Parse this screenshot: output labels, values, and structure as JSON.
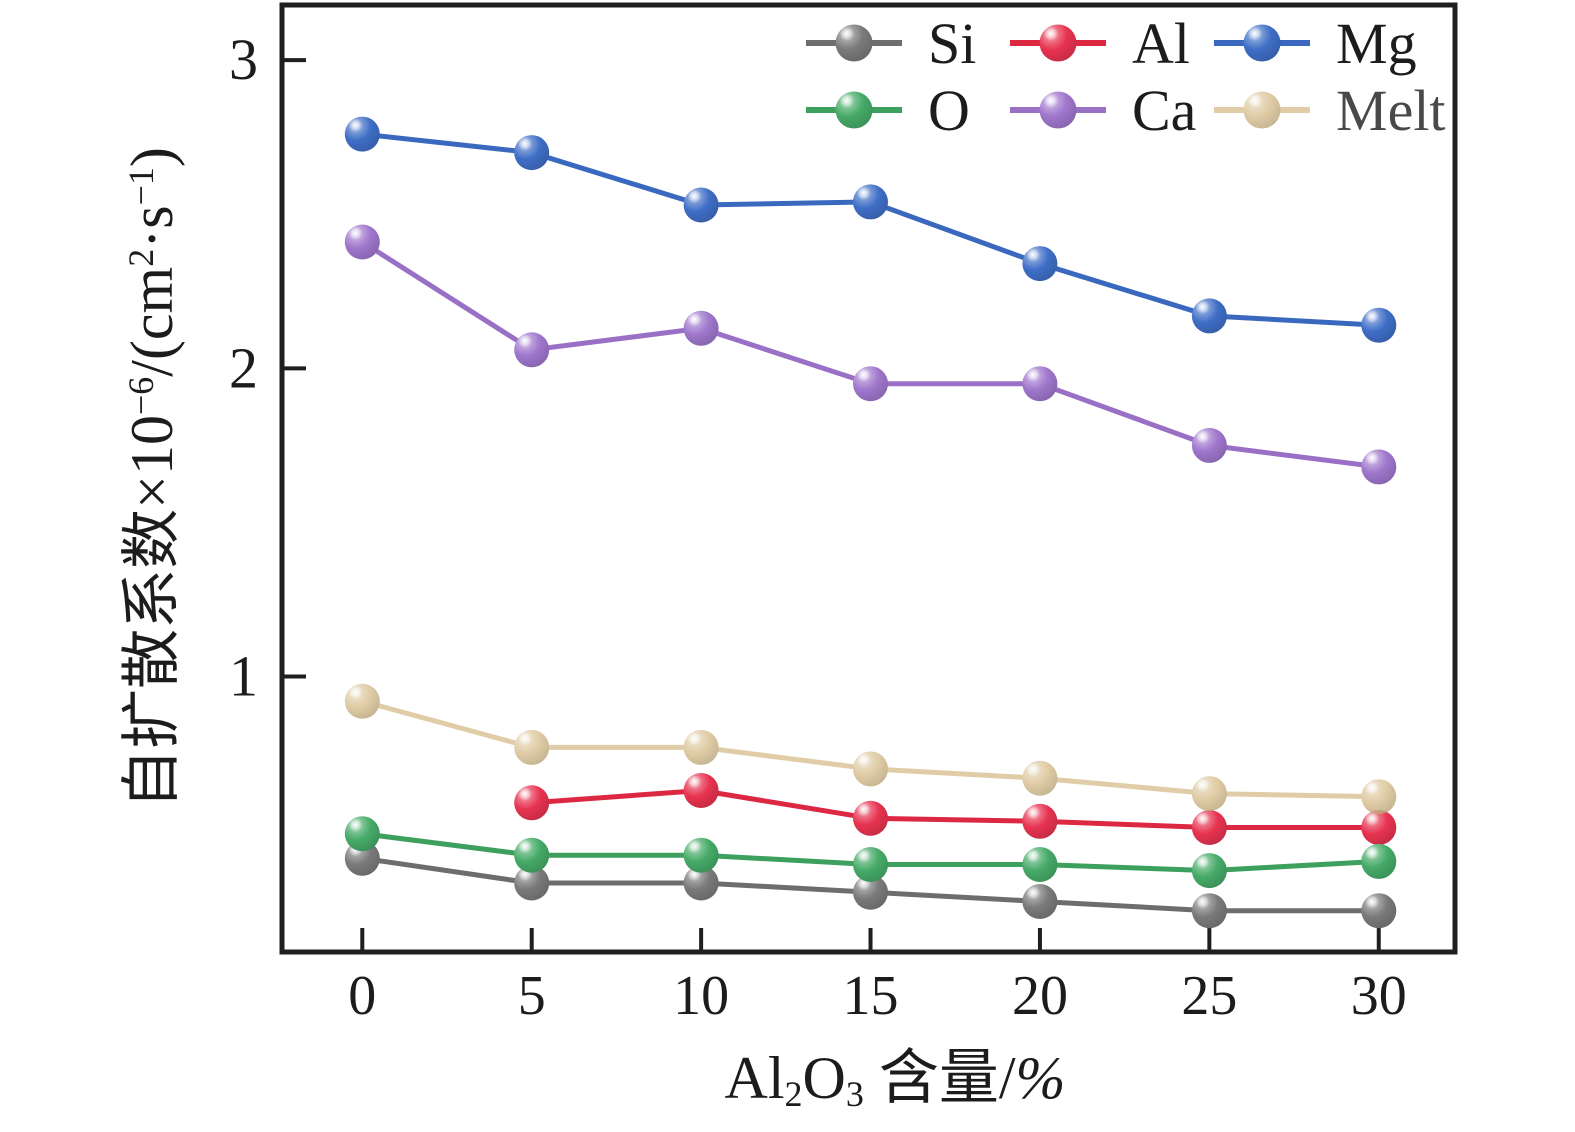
{
  "figure": {
    "background": "#ffffff",
    "axis_color": "#1f1f1f",
    "text_color": "#1c1c1c"
  },
  "chart_data": {
    "type": "line",
    "title": "",
    "xlabel": "Al2O3 含量/%",
    "xlabel_parts": [
      {
        "t": "Al"
      },
      {
        "t": "2",
        "style": "sub"
      },
      {
        "t": "O"
      },
      {
        "t": "3",
        "style": "sub"
      },
      {
        "t": " 含量/"
      },
      {
        "t": "%",
        "style": "italic"
      }
    ],
    "ylabel": "自扩散系数×10−6/(cm2·s−1)",
    "ylabel_parts": [
      {
        "t": "自扩散系数×10"
      },
      {
        "t": "−6",
        "style": "sup"
      },
      {
        "t": "/(cm"
      },
      {
        "t": "2",
        "style": "sup"
      },
      {
        "t": "·s"
      },
      {
        "t": "−1",
        "style": "sup"
      },
      {
        "t": ")"
      }
    ],
    "x": [
      0,
      5,
      10,
      15,
      20,
      25,
      30
    ],
    "x_tick_labels": [
      "0",
      "5",
      "10",
      "15",
      "20",
      "25",
      "30"
    ],
    "y_ticks": [
      1,
      2,
      3
    ],
    "y_tick_labels": [
      "1",
      "2",
      "3"
    ],
    "x_range": [
      -2.37,
      32.25
    ],
    "y_range": [
      0.106,
      3.179
    ],
    "grid": false,
    "series": [
      {
        "name": "Si",
        "line_color": "#6d6d6d",
        "marker_color": "#7a7a7a",
        "opacity": 1,
        "values": [
          0.41,
          0.33,
          0.33,
          0.3,
          0.27,
          0.24,
          0.24
        ]
      },
      {
        "name": "Al",
        "line_color": "#dc2840",
        "marker_color": "#e73350",
        "opacity": 1,
        "values": [
          null,
          0.59,
          0.63,
          0.54,
          0.53,
          0.51,
          0.51
        ]
      },
      {
        "name": "Mg",
        "line_color": "#3a68be",
        "marker_color": "#3f6ec6",
        "opacity": 1,
        "values": [
          2.76,
          2.7,
          2.53,
          2.54,
          2.34,
          2.17,
          2.14
        ]
      },
      {
        "name": "O",
        "line_color": "#3da05f",
        "marker_color": "#46aa68",
        "opacity": 1,
        "values": [
          0.49,
          0.42,
          0.42,
          0.39,
          0.39,
          0.37,
          0.4
        ]
      },
      {
        "name": "Ca",
        "line_color": "#9a70c6",
        "marker_color": "#9f76cc",
        "opacity": 1,
        "values": [
          2.41,
          2.06,
          2.13,
          1.95,
          1.95,
          1.75,
          1.68
        ]
      },
      {
        "name": "Melt",
        "line_color": "#d9c192",
        "marker_color": "#d8bf8e",
        "opacity": 0.8,
        "values": [
          0.92,
          0.77,
          0.77,
          0.7,
          0.67,
          0.62,
          0.61
        ]
      }
    ],
    "legend": {
      "position": "top-right",
      "rows": [
        [
          "Si",
          "Al",
          "Mg"
        ],
        [
          "O",
          "Ca",
          "Melt"
        ]
      ]
    }
  }
}
